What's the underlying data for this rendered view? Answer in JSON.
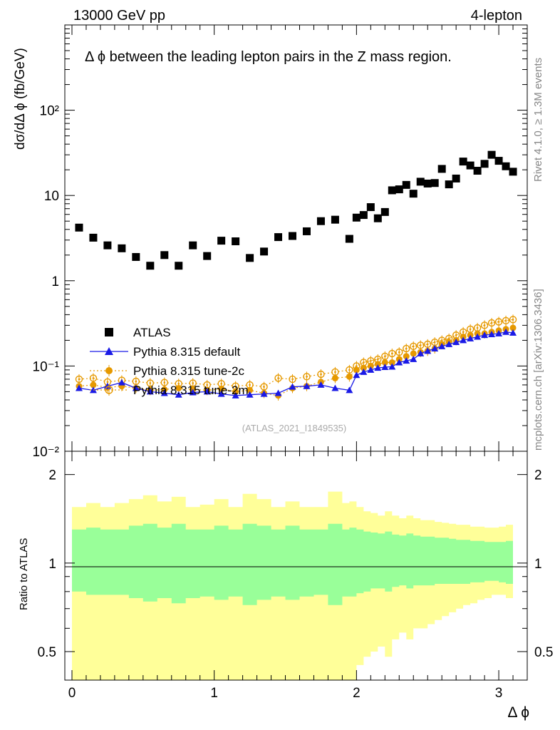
{
  "header": {
    "left": "13000 GeV pp",
    "right": "4-lepton"
  },
  "side_text": {
    "rivet": "Rivet 4.1.0, ≥ 1.3M events",
    "mcplots": "mcplots.cern.ch [arXiv:1306.3436]"
  },
  "chart_data": {
    "type": "scatter",
    "title": "Δ ϕ between the leading lepton pairs in the Z mass region.",
    "xlabel": "Δ ϕ",
    "ylabel": "dσ/dΔ ϕ (fb/GeV)",
    "ratio_ylabel": "Ratio to ATLAS",
    "analysis_id": "(ATLAS_2021_I1849535)",
    "xlim": [
      -0.05,
      3.2
    ],
    "ylim": [
      0.01,
      1000
    ],
    "yscale": "log",
    "ratio_ylim": [
      0.4,
      2.4
    ],
    "x_ticks": [
      0,
      1,
      2,
      3
    ],
    "y_tick_labels": [
      "10⁻²",
      "10⁻¹",
      "1",
      "10",
      "10²"
    ],
    "ratio_ticks": [
      0.5,
      1,
      2
    ],
    "x": [
      0.05,
      0.15,
      0.25,
      0.35,
      0.45,
      0.55,
      0.65,
      0.75,
      0.85,
      0.95,
      1.05,
      1.15,
      1.25,
      1.35,
      1.45,
      1.55,
      1.65,
      1.75,
      1.85,
      1.95,
      2.0,
      2.05,
      2.1,
      2.15,
      2.2,
      2.25,
      2.3,
      2.35,
      2.4,
      2.45,
      2.5,
      2.55,
      2.6,
      2.65,
      2.7,
      2.75,
      2.8,
      2.85,
      2.9,
      2.95,
      3.0,
      3.05,
      3.1
    ],
    "series": [
      {
        "name": "ATLAS",
        "style": "square",
        "color": "#000000",
        "values": [
          4.2,
          3.2,
          2.6,
          2.4,
          1.9,
          1.5,
          2.0,
          1.5,
          2.6,
          1.95,
          2.95,
          2.9,
          1.85,
          2.2,
          3.25,
          3.35,
          3.8,
          5.0,
          5.2,
          3.1,
          5.5,
          5.9,
          7.3,
          5.4,
          6.4,
          11.5,
          11.8,
          13.3,
          10.5,
          14.5,
          13.8,
          14.0,
          20.5,
          13.5,
          15.8,
          25.0,
          22.5,
          19.5,
          23.5,
          30.0,
          25.5,
          22.0,
          19.0
        ]
      },
      {
        "name": "Pythia 8.315 default",
        "style": "triangle-line",
        "color": "#1a1ae6",
        "values": [
          0.055,
          0.052,
          0.058,
          0.064,
          0.055,
          0.05,
          0.048,
          0.046,
          0.049,
          0.05,
          0.047,
          0.045,
          0.046,
          0.047,
          0.048,
          0.057,
          0.058,
          0.06,
          0.055,
          0.052,
          0.078,
          0.085,
          0.09,
          0.095,
          0.097,
          0.098,
          0.11,
          0.115,
          0.12,
          0.14,
          0.15,
          0.16,
          0.17,
          0.18,
          0.19,
          0.2,
          0.21,
          0.22,
          0.23,
          0.235,
          0.24,
          0.25,
          0.245
        ]
      },
      {
        "name": "Pythia 8.315 tune-2c",
        "style": "filled-circle-dotted",
        "color": "#e69900",
        "values": [
          0.058,
          0.06,
          0.056,
          0.058,
          0.055,
          0.052,
          0.053,
          0.055,
          0.053,
          0.052,
          0.054,
          0.05,
          0.052,
          0.048,
          0.045,
          0.055,
          0.058,
          0.065,
          0.072,
          0.075,
          0.09,
          0.095,
          0.1,
          0.105,
          0.11,
          0.11,
          0.12,
          0.13,
          0.14,
          0.145,
          0.15,
          0.16,
          0.18,
          0.19,
          0.2,
          0.22,
          0.23,
          0.24,
          0.24,
          0.25,
          0.26,
          0.27,
          0.28
        ]
      },
      {
        "name": "Pythia 8.315 tune-2m",
        "style": "open-circle-dotted",
        "color": "#e69900",
        "values": [
          0.07,
          0.072,
          0.065,
          0.068,
          0.066,
          0.063,
          0.064,
          0.062,
          0.063,
          0.06,
          0.062,
          0.058,
          0.06,
          0.057,
          0.072,
          0.07,
          0.075,
          0.08,
          0.085,
          0.09,
          0.1,
          0.11,
          0.115,
          0.12,
          0.13,
          0.14,
          0.145,
          0.16,
          0.17,
          0.175,
          0.18,
          0.19,
          0.2,
          0.21,
          0.23,
          0.25,
          0.27,
          0.28,
          0.3,
          0.32,
          0.33,
          0.34,
          0.35
        ]
      }
    ],
    "ratio_band_edges": [
      0.0,
      0.1,
      0.2,
      0.3,
      0.4,
      0.5,
      0.6,
      0.7,
      0.8,
      0.9,
      1.0,
      1.1,
      1.2,
      1.3,
      1.4,
      1.5,
      1.6,
      1.7,
      1.8,
      1.9,
      1.95,
      2.0,
      2.05,
      2.1,
      2.15,
      2.2,
      2.25,
      2.3,
      2.35,
      2.4,
      2.45,
      2.5,
      2.55,
      2.6,
      2.65,
      2.7,
      2.75,
      2.8,
      2.85,
      2.9,
      2.95,
      3.0,
      3.05,
      3.1,
      3.14
    ],
    "ratio_band_green": {
      "upper": [
        1.3,
        1.32,
        1.3,
        1.3,
        1.34,
        1.36,
        1.32,
        1.36,
        1.3,
        1.3,
        1.34,
        1.3,
        1.36,
        1.34,
        1.3,
        1.34,
        1.3,
        1.3,
        1.36,
        1.3,
        1.32,
        1.3,
        1.28,
        1.27,
        1.26,
        1.28,
        1.25,
        1.24,
        1.26,
        1.24,
        1.23,
        1.23,
        1.22,
        1.22,
        1.21,
        1.2,
        1.2,
        1.19,
        1.19,
        1.18,
        1.18,
        1.18,
        1.19
      ],
      "lower": [
        0.8,
        0.78,
        0.78,
        0.78,
        0.76,
        0.74,
        0.76,
        0.73,
        0.76,
        0.77,
        0.75,
        0.77,
        0.72,
        0.75,
        0.77,
        0.75,
        0.77,
        0.78,
        0.72,
        0.77,
        0.77,
        0.79,
        0.8,
        0.82,
        0.82,
        0.8,
        0.83,
        0.84,
        0.82,
        0.84,
        0.84,
        0.84,
        0.85,
        0.85,
        0.85,
        0.85,
        0.85,
        0.86,
        0.86,
        0.87,
        0.87,
        0.86,
        0.85
      ]
    },
    "ratio_band_yellow": {
      "upper": [
        1.55,
        1.6,
        1.55,
        1.6,
        1.65,
        1.7,
        1.62,
        1.68,
        1.55,
        1.58,
        1.65,
        1.55,
        1.72,
        1.65,
        1.55,
        1.62,
        1.55,
        1.55,
        1.75,
        1.6,
        1.62,
        1.55,
        1.5,
        1.48,
        1.45,
        1.5,
        1.45,
        1.42,
        1.45,
        1.42,
        1.4,
        1.4,
        1.38,
        1.37,
        1.36,
        1.35,
        1.35,
        1.33,
        1.33,
        1.32,
        1.32,
        1.33,
        1.35
      ],
      "lower": [
        0.4,
        0.38,
        0.38,
        0.38,
        0.36,
        0.34,
        0.36,
        0.33,
        0.36,
        0.37,
        0.35,
        0.37,
        0.32,
        0.35,
        0.37,
        0.35,
        0.37,
        0.38,
        0.32,
        0.37,
        0.38,
        0.45,
        0.48,
        0.5,
        0.52,
        0.48,
        0.55,
        0.58,
        0.55,
        0.6,
        0.6,
        0.62,
        0.64,
        0.66,
        0.68,
        0.7,
        0.72,
        0.73,
        0.75,
        0.76,
        0.78,
        0.78,
        0.76
      ]
    },
    "ratio_colors": {
      "green": "#99ff99",
      "yellow": "#ffff99"
    }
  }
}
